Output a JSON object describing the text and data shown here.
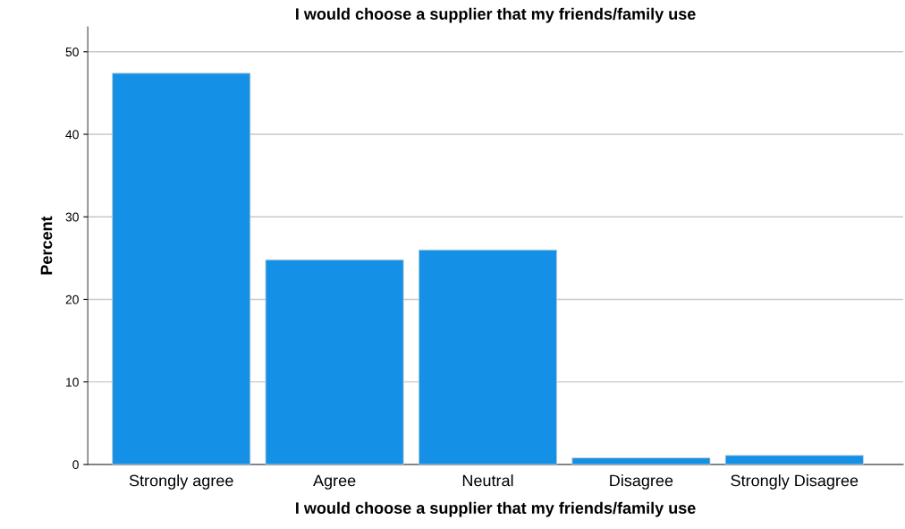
{
  "chart_data": {
    "type": "bar",
    "title": "I would choose a supplier that my friends/family use",
    "xlabel": "I would choose a supplier that my friends/family use",
    "ylabel": "Percent",
    "categories": [
      "Strongly agree",
      "Agree",
      "Neutral",
      "Disagree",
      "Strongly Disagree"
    ],
    "values": [
      47.4,
      24.8,
      26.0,
      0.8,
      1.1
    ],
    "color": "#1491e6",
    "ylim": [
      0,
      53
    ],
    "yticks": [
      0,
      10,
      20,
      30,
      40,
      50
    ],
    "grid": "y"
  }
}
